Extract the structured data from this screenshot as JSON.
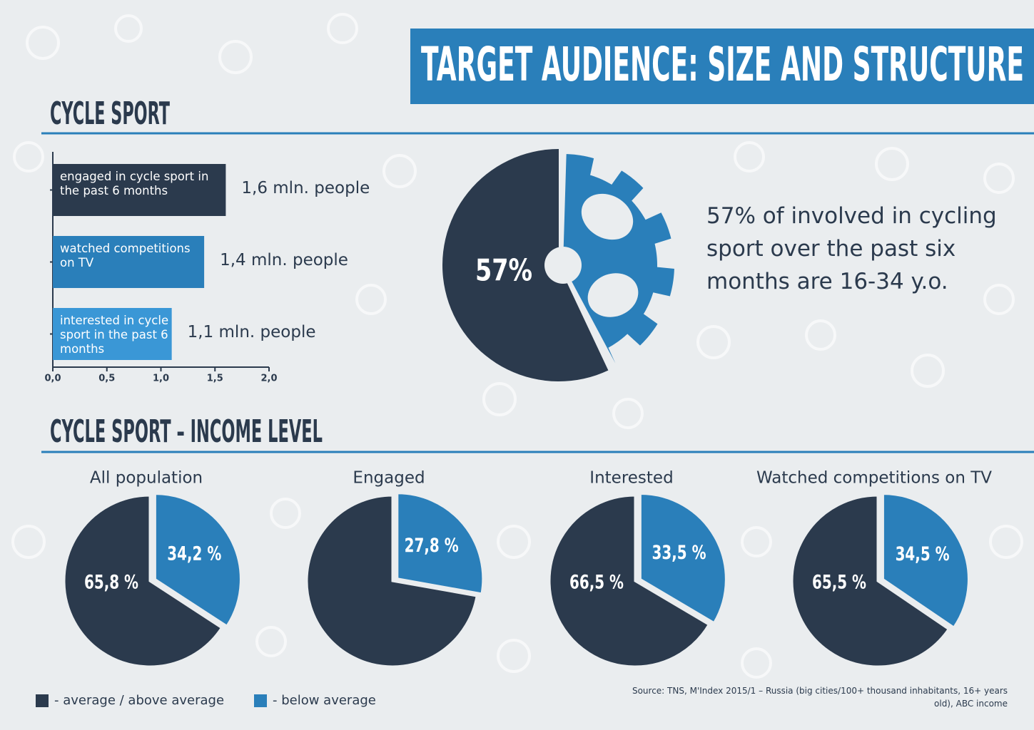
{
  "title": "TARGET AUDIENCE: SIZE AND STRUCTURE",
  "source": "Source: TNS, M'Index 2015/1 – Russia (big cities/100+ thousand inhabitants, 16+ years old), ABC income",
  "chart_data": [
    {
      "type": "hbar",
      "title": "CYCLE SPORT",
      "categories": [
        "engaged in cycle sport in the past 6 months",
        "watched competitions on TV",
        "interested in cycle sport in the past 6 months"
      ],
      "values": [
        1.6,
        1.4,
        1.1
      ],
      "value_labels": [
        "1,6 mln. people",
        "1,4 mln. people",
        "1,1 mln. people"
      ],
      "colors": [
        "#2b3a4d",
        "#2a7fba",
        "#3a97d6"
      ],
      "xlim": [
        0,
        2
      ],
      "xticks": [
        {
          "value": 0,
          "label": "0,0"
        },
        {
          "value": 0.5,
          "label": "0,5"
        },
        {
          "value": 1,
          "label": "1,0"
        },
        {
          "value": 1.5,
          "label": "1,5"
        },
        {
          "value": 2,
          "label": "2,0"
        }
      ]
    },
    {
      "type": "gear-pie",
      "values": [
        57
      ],
      "value_labels": [
        "57%"
      ],
      "colors": [
        "#2b3a4d",
        "#2a7fba"
      ],
      "annotation": "57% of involved in cycling sport over the past six months are 16-34 y.o."
    },
    {
      "type": "pie",
      "section_title": "CYCLE SPORT – INCOME LEVEL",
      "title": "All population",
      "categories": [
        "- average / above average",
        "- below average"
      ],
      "values": [
        65.8,
        34.2
      ],
      "value_labels": [
        "65,8 %",
        "34,2 %"
      ],
      "colors": [
        "#2b3a4d",
        "#2a7fba"
      ]
    },
    {
      "type": "pie",
      "title": "Engaged",
      "values": [
        72.2,
        27.8
      ],
      "value_labels": [
        null,
        "27,8 %"
      ],
      "colors": [
        "#2b3a4d",
        "#2a7fba"
      ]
    },
    {
      "type": "pie",
      "title": "Interested",
      "values": [
        66.5,
        33.5
      ],
      "value_labels": [
        "66,5 %",
        "33,5 %"
      ],
      "colors": [
        "#2b3a4d",
        "#2a7fba"
      ]
    },
    {
      "type": "pie",
      "title": "Watched competitions on TV",
      "values": [
        65.5,
        34.5
      ],
      "value_labels": [
        "65,5 %",
        "34,5 %"
      ],
      "colors": [
        "#2b3a4d",
        "#2a7fba"
      ]
    }
  ]
}
